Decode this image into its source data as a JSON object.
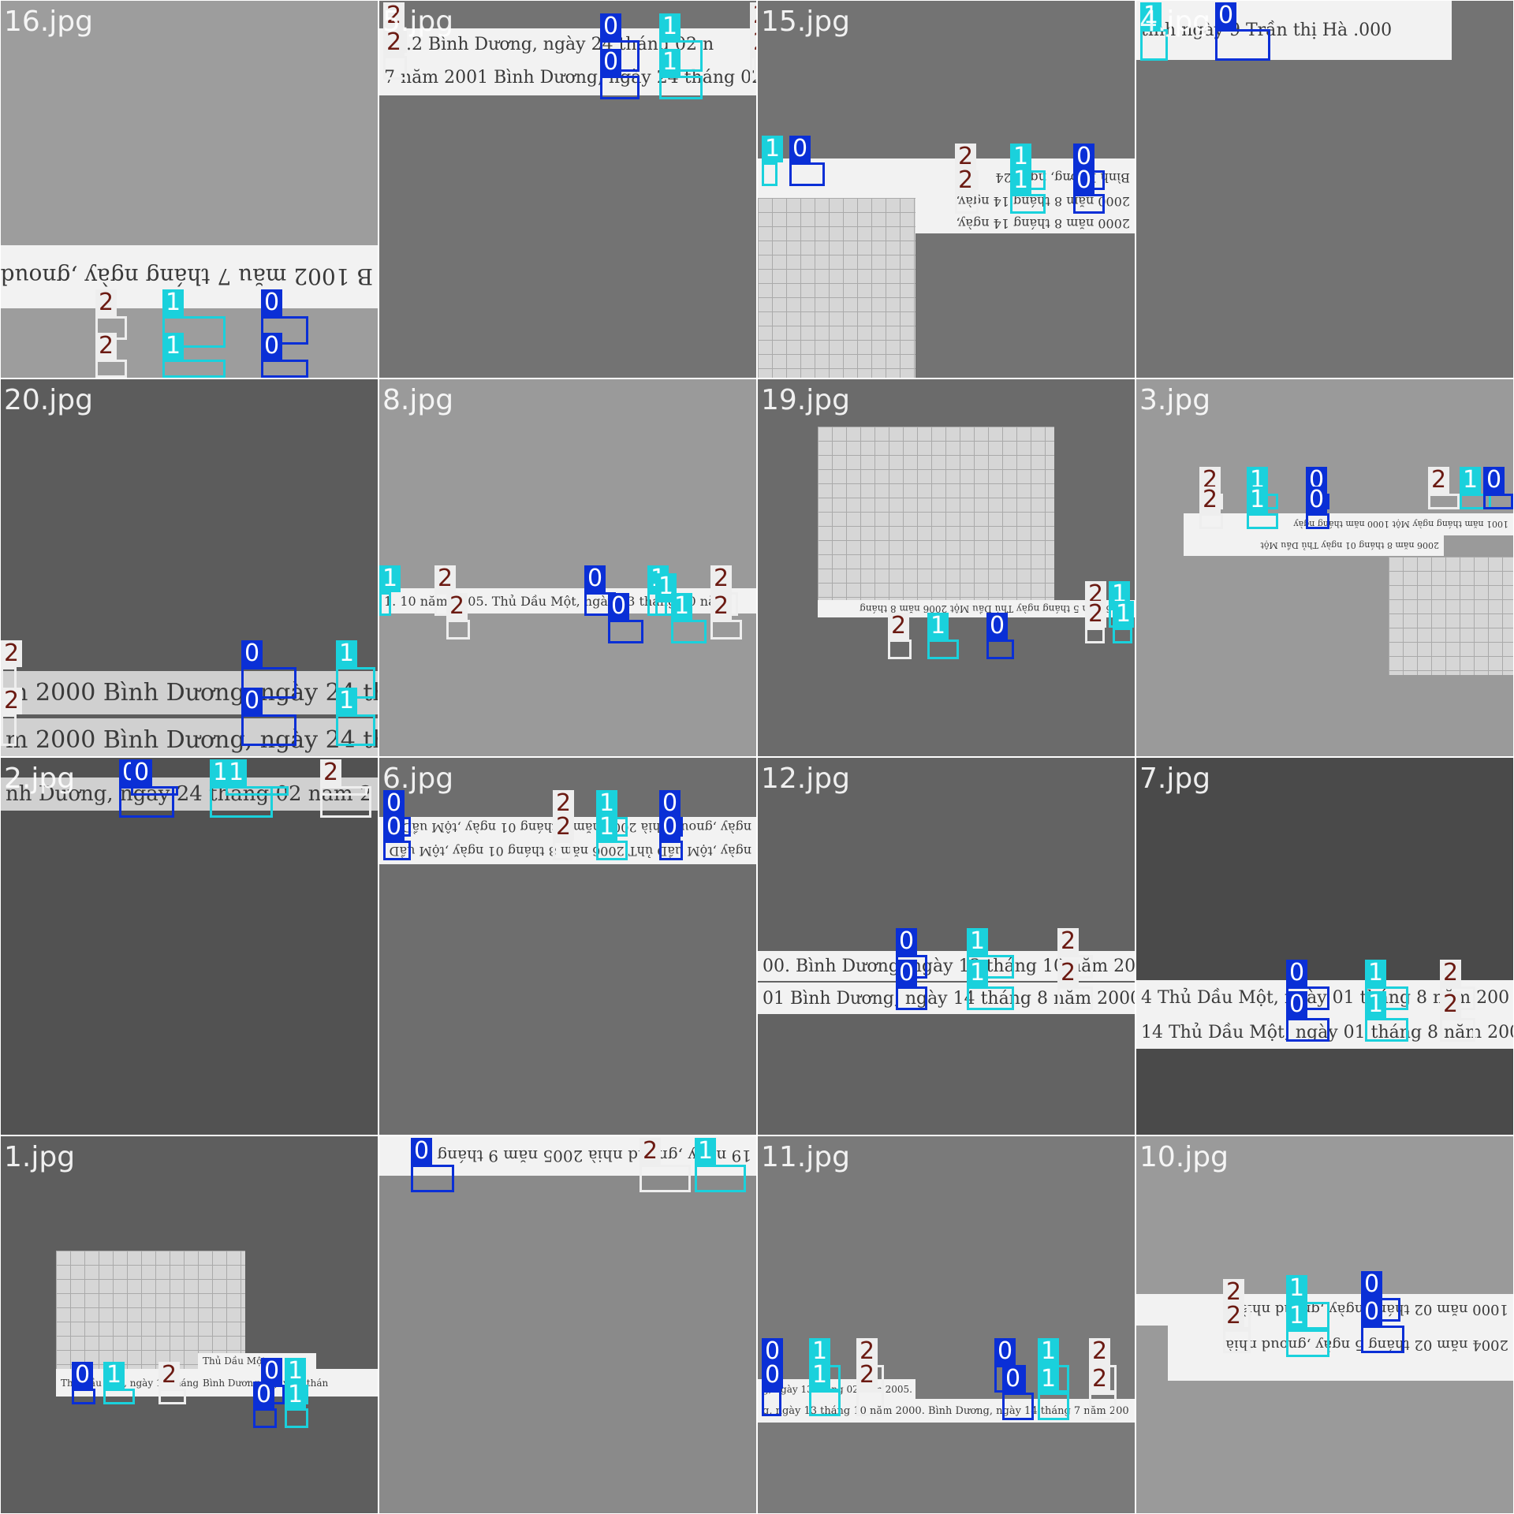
{
  "colors": {
    "class_0": "#0a2fd6",
    "class_1": "#1ad1dc",
    "class_2": "#eeeeee",
    "tag_text_0": "#ffffff",
    "tag_text_1": "#ffffff",
    "tag_text_2": "#6b1a12"
  },
  "tiles": [
    {
      "label": "16.jpg",
      "bg": "#9d9d9d",
      "strips": [
        {
          "text": "B 1002 mӑu 7 tháng ngày ,gnoud",
          "flip": true
        }
      ],
      "dets": [
        {
          "c": 2
        },
        {
          "c": 1
        },
        {
          "c": 0
        },
        {
          "c": 2
        },
        {
          "c": 1
        },
        {
          "c": 0
        }
      ]
    },
    {
      "label": "5.jpg",
      "bg": "#737373",
      "strips": [
        {
          "text": "22.2  Bình Dương, ngày 24 tháng 02 n"
        },
        {
          "text": "7 năm 2001 Bình Dương, ngày 24 tháng 02 n"
        }
      ],
      "dets": [
        {
          "c": 2
        },
        {
          "c": 0
        },
        {
          "c": 1
        },
        {
          "c": 2
        },
        {
          "c": 2
        },
        {
          "c": 0
        },
        {
          "c": 1
        },
        {
          "c": 2
        }
      ]
    },
    {
      "label": "15.jpg",
      "bg": "#737373",
      "strips": [
        {
          "text": "Bình Dương, ngày 24",
          "flip": true
        },
        {
          "text": "2000 năm 8 tháng 14 ngày,",
          "flip": true
        },
        {
          "text": "2000 năm 8 tháng 14 ngày,",
          "flip": true
        }
      ],
      "dets": [
        {
          "c": 1
        },
        {
          "c": 0
        },
        {
          "c": 2
        },
        {
          "c": 1
        },
        {
          "c": 0
        },
        {
          "c": 2
        },
        {
          "c": 1
        },
        {
          "c": 0
        }
      ]
    },
    {
      "label": "4.jpg",
      "bg": "#737373",
      "strips": [
        {
          "text": "tỉnh ngày 9 Trần thị Hà  .000"
        }
      ],
      "dets": [
        {
          "c": 1
        },
        {
          "c": 0
        }
      ]
    },
    {
      "label": "20.jpg",
      "bg": "#5c5c5c",
      "strips": [
        {
          "text": "m 2000  Bình Dương, ngày 24 thán"
        },
        {
          "text": "m 2000  Bình Dương, ngày 24 thán"
        }
      ],
      "dets": [
        {
          "c": 2
        },
        {
          "c": 0
        },
        {
          "c": 1
        },
        {
          "c": 2
        },
        {
          "c": 0
        },
        {
          "c": 1
        }
      ]
    },
    {
      "label": "8.jpg",
      "bg": "#9a9a9a",
      "strips": [
        {
          "text": "1. 10 năm 2005.          Thủ Dầu Một, ngày 13 tháng 10 năm"
        }
      ],
      "dets": [
        {
          "c": 1
        },
        {
          "c": 2
        },
        {
          "c": 0
        },
        {
          "c": 1
        },
        {
          "c": 2
        },
        {
          "c": 1
        },
        {
          "c": 2
        },
        {
          "c": 0
        },
        {
          "c": 1
        },
        {
          "c": 2
        }
      ]
    },
    {
      "label": "19.jpg",
      "bg": "#6b6b6b",
      "strips": [
        {
          "text": "2006 năm 5 tháng ngày Thủ Dầu Một 2006 năm 8 tháng",
          "flip": true
        }
      ],
      "dets": [
        {
          "c": 2
        },
        {
          "c": 1
        },
        {
          "c": 0
        },
        {
          "c": 2
        },
        {
          "c": 1
        },
        {
          "c": 2
        },
        {
          "c": 1
        }
      ]
    },
    {
      "label": "3.jpg",
      "bg": "#9a9a9a",
      "strips": [
        {
          "text": "1001 năm tháng ngày Một 1000 năm tháng ngày",
          "flip": true
        },
        {
          "text": "2006 năm 8 tháng 01 ngày Thủ Dầu Một",
          "flip": true
        }
      ],
      "dets": [
        {
          "c": 2
        },
        {
          "c": 1
        },
        {
          "c": 0
        },
        {
          "c": 2
        },
        {
          "c": 1
        },
        {
          "c": 0
        },
        {
          "c": 2
        },
        {
          "c": 1
        },
        {
          "c": 0
        }
      ]
    },
    {
      "label": "2.jpg",
      "bg": "#525252",
      "strips": [
        {
          "text": "nh Dương, ngày 24 tháng 02 năm 2"
        }
      ],
      "dets": [
        {
          "c": 0
        },
        {
          "c": 1
        },
        {
          "c": 2
        },
        {
          "c": 0
        },
        {
          "c": 1
        },
        {
          "c": 2
        }
      ]
    },
    {
      "label": "6.jpg",
      "bg": "#6e6e6e",
      "strips": [
        {
          "text": "ngày ,gnoud nhià 2006 năm 8 tháng 01 ngày ,tộM uầD",
          "flip": true
        },
        {
          "text": "ngày ,tộM uầD ủhT 2006 năm 8 tháng 01 ngày ,tộM uầD",
          "flip": true
        }
      ],
      "dets": [
        {
          "c": 0
        },
        {
          "c": 2
        },
        {
          "c": 1
        },
        {
          "c": 0
        },
        {
          "c": 0
        },
        {
          "c": 2
        },
        {
          "c": 1
        },
        {
          "c": 0
        }
      ]
    },
    {
      "label": "12.jpg",
      "bg": "#636363",
      "strips": [
        {
          "text": "00.  Bình Dương, ngày 13 tháng 10 năm 2000."
        },
        {
          "text": "01  Bình Dương, ngày 14 tháng 8 năm 2000"
        }
      ],
      "dets": [
        {
          "c": 0
        },
        {
          "c": 1
        },
        {
          "c": 2
        },
        {
          "c": 0
        },
        {
          "c": 1
        },
        {
          "c": 2
        }
      ]
    },
    {
      "label": "7.jpg",
      "bg": "#4a4a4a",
      "strips": [
        {
          "text": "4  Thủ Dầu Một, ngày 01 tháng 8 năm 200"
        },
        {
          "text": "14 Thủ Dầu Một, ngày 01 tháng 8 năm 200"
        }
      ],
      "dets": [
        {
          "c": 0
        },
        {
          "c": 1
        },
        {
          "c": 2
        },
        {
          "c": 0
        },
        {
          "c": 1
        },
        {
          "c": 2
        }
      ]
    },
    {
      "label": "1.jpg",
      "bg": "#5e5e5e",
      "strips": [
        {
          "text": "Thủ Dầu Một, ngày 13 tháng 9 năm 2005."
        },
        {
          "text": "Thủ Dầu Một"
        },
        {
          "text": "Bình Dương, ngày 24 thán"
        }
      ],
      "dets": [
        {
          "c": 0
        },
        {
          "c": 1
        },
        {
          "c": 2
        },
        {
          "c": 0
        },
        {
          "c": 1
        },
        {
          "c": 0
        },
        {
          "c": 1
        }
      ]
    },
    {
      "label": "",
      "bg": "#8a8a8a",
      "strips": [
        {
          "text": "19 ngày ,gnoud nhià 2005 năm 9 tháng",
          "flip": true
        }
      ],
      "dets": [
        {
          "c": 0
        },
        {
          "c": 2
        },
        {
          "c": 1
        }
      ]
    },
    {
      "label": "11.jpg",
      "bg": "#7a7a7a",
      "strips": [
        {
          "text": "g, ngày 13 tháng 02 năm 2005. Bình Dương"
        },
        {
          "text": "g, ngày 13 tháng 10 năm 2000.  Bình Dương, ngày 14 tháng 7 năm 200"
        }
      ],
      "dets": [
        {
          "c": 0
        },
        {
          "c": 1
        },
        {
          "c": 2
        },
        {
          "c": 0
        },
        {
          "c": 1
        },
        {
          "c": 2
        },
        {
          "c": 0
        },
        {
          "c": 1
        },
        {
          "c": 2
        },
        {
          "c": 0
        },
        {
          "c": 1
        },
        {
          "c": 2
        }
      ]
    },
    {
      "label": "10.jpg",
      "bg": "#9a9a9a",
      "strips": [
        {
          "text": "2004 năm 02 tháng 5 ngày ,gnoud nhià",
          "flip": true
        },
        {
          "text": "1000 năm 02 tháng ngày ,gnoud nhià",
          "flip": true
        }
      ],
      "dets": [
        {
          "c": 2
        },
        {
          "c": 1
        },
        {
          "c": 0
        },
        {
          "c": 2
        },
        {
          "c": 1
        },
        {
          "c": 0
        }
      ]
    }
  ]
}
